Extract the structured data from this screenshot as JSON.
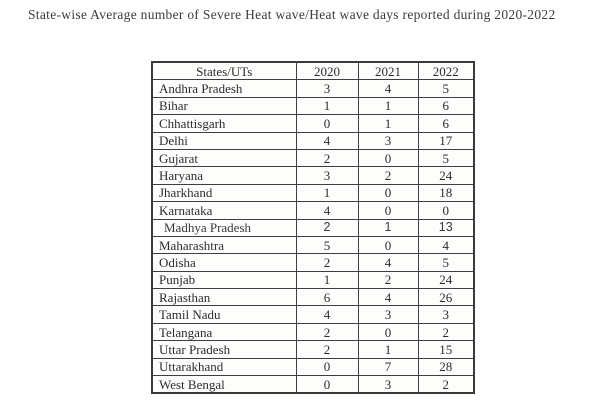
{
  "page": {
    "title": "State-wise Average number of Severe Heat wave/Heat wave days reported during 2020-2022"
  },
  "table": {
    "columns": [
      "States/UTs",
      "2020",
      "2021",
      "2022"
    ],
    "rows": [
      {
        "state": "Andhra Pradesh",
        "values": [
          3,
          4,
          5
        ]
      },
      {
        "state": "Bihar",
        "values": [
          1,
          1,
          6
        ]
      },
      {
        "state": "Chhattisgarh",
        "values": [
          0,
          1,
          6
        ]
      },
      {
        "state": "Delhi",
        "values": [
          4,
          3,
          17
        ]
      },
      {
        "state": "Gujarat",
        "values": [
          2,
          0,
          5
        ]
      },
      {
        "state": "Haryana",
        "values": [
          3,
          2,
          24
        ]
      },
      {
        "state": "Jharkhand",
        "values": [
          1,
          0,
          18
        ]
      },
      {
        "state": "Karnataka",
        "values": [
          4,
          0,
          0
        ]
      },
      {
        "state": "Madhya Pradesh",
        "values": [
          2,
          1,
          13
        ]
      },
      {
        "state": "Maharashtra",
        "values": [
          5,
          0,
          4
        ]
      },
      {
        "state": "Odisha",
        "values": [
          2,
          4,
          5
        ]
      },
      {
        "state": "Punjab",
        "values": [
          1,
          2,
          24
        ]
      },
      {
        "state": "Rajasthan",
        "values": [
          6,
          4,
          26
        ]
      },
      {
        "state": "Tamil Nadu",
        "values": [
          4,
          3,
          3
        ]
      },
      {
        "state": "Telangana",
        "values": [
          2,
          0,
          2
        ]
      },
      {
        "state": "Uttar Pradesh",
        "values": [
          2,
          1,
          15
        ]
      },
      {
        "state": "Uttarakhand",
        "values": [
          0,
          7,
          28
        ]
      },
      {
        "state": "West Bengal",
        "values": [
          0,
          3,
          2
        ]
      }
    ]
  },
  "colors": {
    "text": "#2e2c2b",
    "border": "#3e3e3e",
    "background": "#ffffff"
  }
}
